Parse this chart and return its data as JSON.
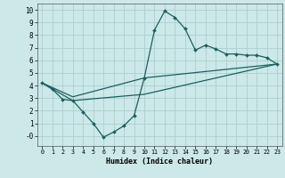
{
  "title": "",
  "xlabel": "Humidex (Indice chaleur)",
  "ylabel": "",
  "xlim": [
    -0.5,
    23.5
  ],
  "ylim": [
    -0.8,
    10.5
  ],
  "xticks": [
    0,
    1,
    2,
    3,
    4,
    5,
    6,
    7,
    8,
    9,
    10,
    11,
    12,
    13,
    14,
    15,
    16,
    17,
    18,
    19,
    20,
    21,
    22,
    23
  ],
  "yticks": [
    0,
    1,
    2,
    3,
    4,
    5,
    6,
    7,
    8,
    9,
    10
  ],
  "ytick_labels": [
    "-0",
    "1",
    "2",
    "3",
    "4",
    "5",
    "6",
    "7",
    "8",
    "9",
    "10"
  ],
  "bg_color": "#cce8e8",
  "grid_color": "#aad0d0",
  "line_color": "#1a6060",
  "line1_x": [
    0,
    1,
    2,
    3,
    4,
    5,
    6,
    7,
    8,
    9,
    10,
    11,
    12,
    13,
    14,
    15,
    16,
    17,
    18,
    19,
    20,
    21,
    22,
    23
  ],
  "line1_y": [
    4.2,
    3.7,
    2.9,
    2.8,
    1.9,
    1.0,
    -0.1,
    0.3,
    0.8,
    1.6,
    4.6,
    8.4,
    9.9,
    9.4,
    8.5,
    6.8,
    7.2,
    6.9,
    6.5,
    6.5,
    6.4,
    6.4,
    6.2,
    5.7
  ],
  "line2_x": [
    0,
    3,
    10,
    23
  ],
  "line2_y": [
    4.2,
    3.1,
    4.6,
    5.7
  ],
  "line3_x": [
    0,
    3,
    10,
    23
  ],
  "line3_y": [
    4.2,
    2.8,
    3.3,
    5.7
  ]
}
